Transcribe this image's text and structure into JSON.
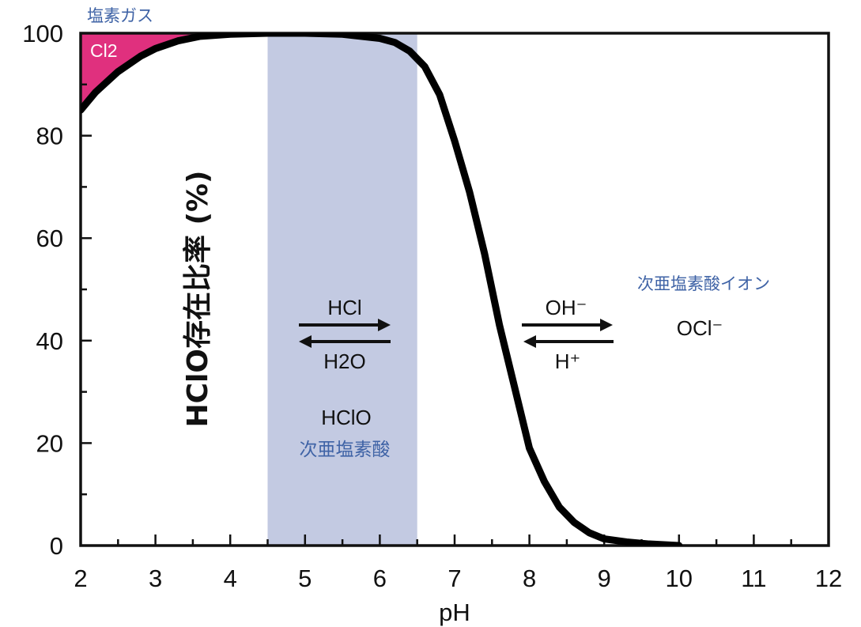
{
  "chart_data": {
    "type": "line",
    "xlabel": "pH",
    "ylabel": "HClO存在比率 (%)",
    "xlim": [
      2,
      12
    ],
    "ylim": [
      0,
      100
    ],
    "x_ticks": [
      "2",
      "3",
      "4",
      "5",
      "6",
      "7",
      "8",
      "9",
      "10",
      "11",
      "12"
    ],
    "y_ticks": [
      "0",
      "20",
      "40",
      "60",
      "80",
      "100"
    ],
    "series": [
      {
        "x": [
          2.0,
          2.2,
          2.5,
          2.8,
          3.0,
          3.3,
          3.6,
          4.0,
          4.5,
          5.0,
          5.5,
          6.0,
          6.2,
          6.4,
          6.6,
          6.8,
          7.0,
          7.2,
          7.4,
          7.5,
          7.6,
          7.8,
          8.0,
          8.2,
          8.4,
          8.6,
          8.8,
          9.0,
          9.3,
          9.6,
          10.0
        ],
        "y": [
          85,
          88.5,
          92.5,
          95.5,
          97,
          98.5,
          99.4,
          99.8,
          100,
          100,
          99.8,
          99,
          98.2,
          96.5,
          93.5,
          88,
          79,
          69,
          57,
          50,
          43,
          31,
          19,
          12.5,
          7.5,
          4.5,
          2.5,
          1.3,
          0.7,
          0.3,
          0
        ]
      }
    ],
    "colors": {
      "curve": "#000000",
      "cl2_fill": "#e0307e",
      "hclo_band": "#c3cae2",
      "annotation_blue": "#3f63a6"
    },
    "hclo_band_x": [
      4.5,
      6.5
    ],
    "annotations": {
      "cl2_gas_jp": "塩素ガス",
      "cl2_formula": "Cl2",
      "hclo_jp": "次亜塩素酸",
      "hclo_formula": "HClO",
      "ocl_jp": "次亜塩素酸イオン",
      "ocl_formula": "OCl⁻",
      "left_arrow_top": "HCl",
      "left_arrow_bottom": "H2O",
      "right_arrow_top": "OH⁻",
      "right_arrow_bottom": "H⁺"
    }
  }
}
